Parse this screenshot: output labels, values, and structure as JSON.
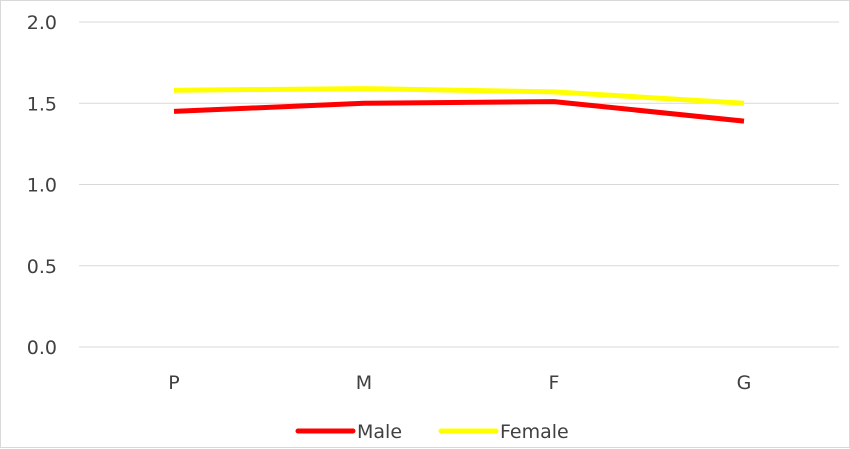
{
  "chart_data": {
    "type": "line",
    "categories": [
      "P",
      "M",
      "F",
      "G"
    ],
    "series": [
      {
        "name": "Male",
        "values": [
          1.45,
          1.5,
          1.51,
          1.39
        ],
        "color": "#ff0000"
      },
      {
        "name": "Female",
        "values": [
          1.58,
          1.59,
          1.57,
          1.5
        ],
        "color": "#ffff00"
      }
    ],
    "y_ticks": [
      "0.0",
      "0.5",
      "1.0",
      "1.5",
      "2.0"
    ],
    "ylim": [
      0,
      2
    ],
    "grid": true,
    "legend_position": "bottom"
  }
}
